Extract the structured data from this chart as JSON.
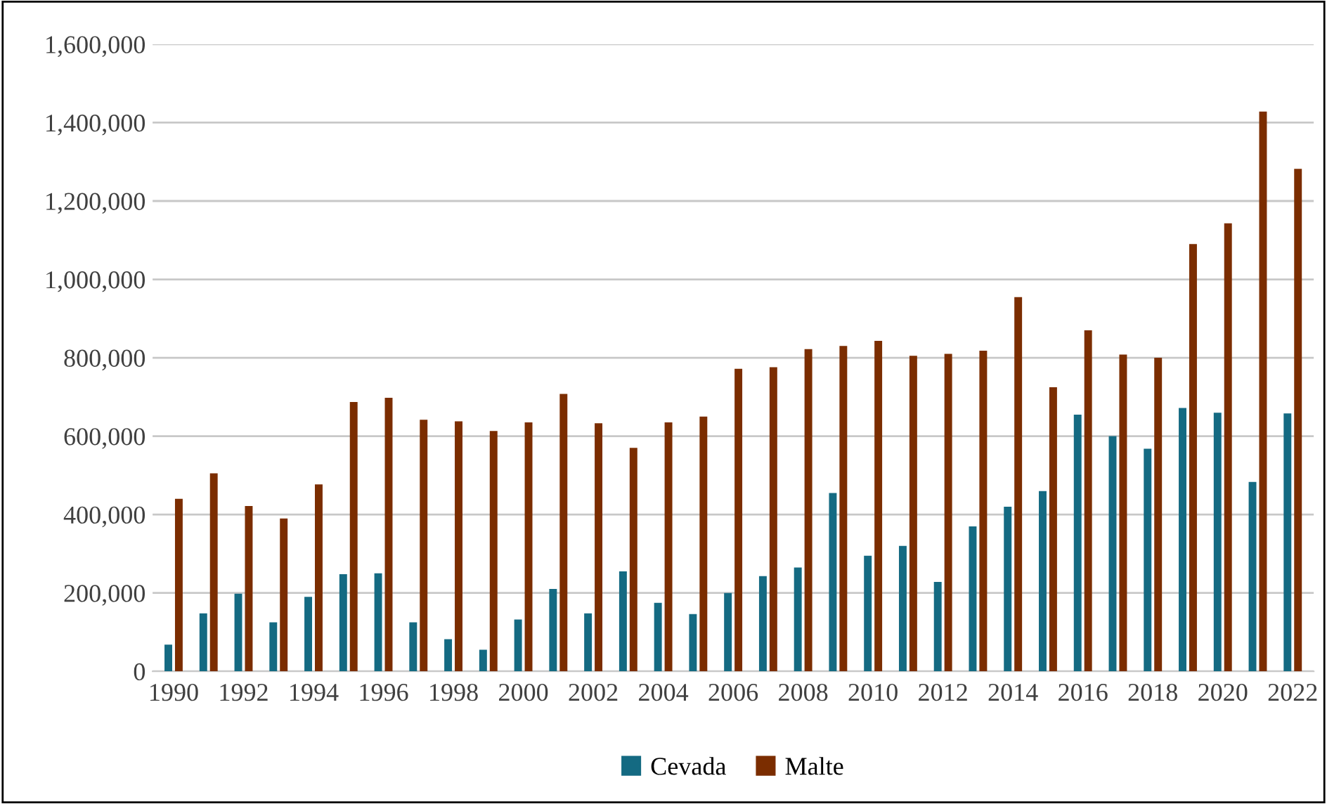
{
  "chart_data": {
    "type": "bar",
    "categories": [
      "1990",
      null,
      "1992",
      null,
      "1994",
      null,
      "1996",
      null,
      "1998",
      null,
      "2000",
      null,
      "2002",
      null,
      "2004",
      null,
      "2006",
      null,
      "2008",
      null,
      "2010",
      null,
      "2012",
      null,
      "2014",
      null,
      "2016",
      null,
      "2018",
      null,
      "2020",
      null,
      "2022"
    ],
    "series": [
      {
        "name": "Cevada",
        "color": "#146a82",
        "values": [
          68000,
          148000,
          198000,
          125000,
          190000,
          248000,
          250000,
          125000,
          82000,
          55000,
          132000,
          210000,
          148000,
          255000,
          175000,
          146000,
          200000,
          243000,
          265000,
          455000,
          295000,
          320000,
          228000,
          370000,
          420000,
          460000,
          655000,
          600000,
          568000,
          672000,
          660000,
          483000,
          658000
        ]
      },
      {
        "name": "Malte",
        "color": "#7b2d00",
        "values": [
          440000,
          505000,
          422000,
          390000,
          477000,
          687000,
          698000,
          642000,
          638000,
          613000,
          635000,
          708000,
          633000,
          570000,
          635000,
          650000,
          772000,
          776000,
          822000,
          830000,
          843000,
          805000,
          810000,
          818000,
          955000,
          725000,
          870000,
          808000,
          800000,
          1090000,
          1143000,
          1428000,
          1282000
        ]
      }
    ],
    "ylim": [
      0,
      1600000
    ],
    "yticks": [
      {
        "value": 0,
        "label": "0"
      },
      {
        "value": 200000,
        "label": "200,000"
      },
      {
        "value": 400000,
        "label": "400,000"
      },
      {
        "value": 600000,
        "label": "600,000"
      },
      {
        "value": 800000,
        "label": "800,000"
      },
      {
        "value": 1000000,
        "label": "1,000,000"
      },
      {
        "value": 1200000,
        "label": "1,200,000"
      },
      {
        "value": 1400000,
        "label": "1,400,000"
      },
      {
        "value": 1600000,
        "label": "1,600,000"
      }
    ],
    "grid": "y",
    "legend": "bottom"
  }
}
